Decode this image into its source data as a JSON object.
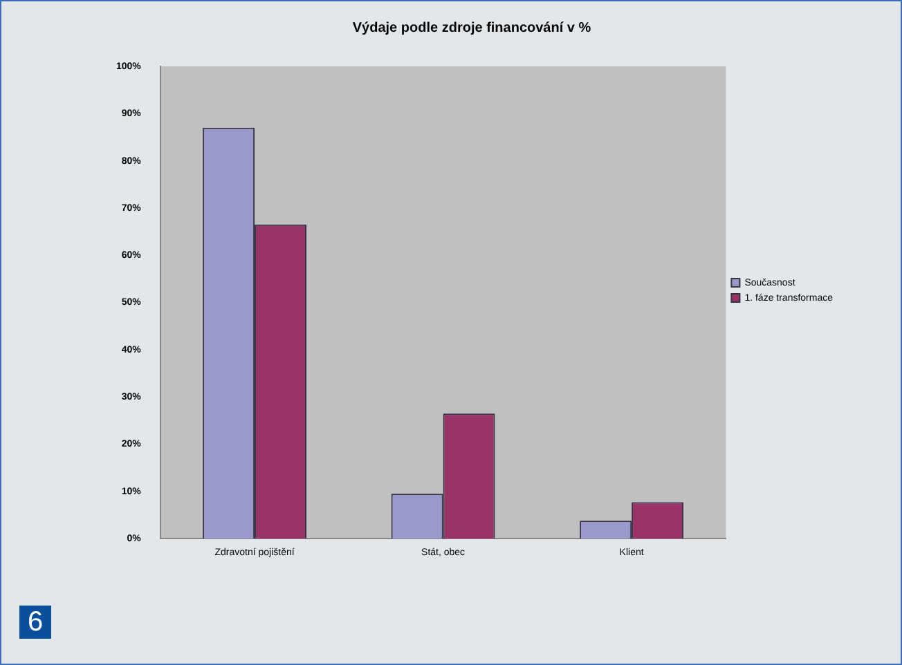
{
  "chart_data": {
    "type": "bar",
    "title": "Výdaje podle zdroje financování v %",
    "categories": [
      "Zdravotní pojištění",
      "Stát, obec",
      "Klient"
    ],
    "series": [
      {
        "name": "Současnost",
        "color": "#9999cc",
        "values": [
          87,
          9.5,
          3.8
        ]
      },
      {
        "name": "1. fáze transformace",
        "color": "#993366",
        "values": [
          66.5,
          26.5,
          7.7
        ]
      }
    ],
    "ylim": [
      0,
      100
    ],
    "yticks": [
      {
        "value": 0,
        "label": "0%"
      },
      {
        "value": 10,
        "label": "10%"
      },
      {
        "value": 20,
        "label": "20%"
      },
      {
        "value": 30,
        "label": "30%"
      },
      {
        "value": 40,
        "label": "40%"
      },
      {
        "value": 50,
        "label": "50%"
      },
      {
        "value": 60,
        "label": "60%"
      },
      {
        "value": 70,
        "label": "70%"
      },
      {
        "value": 80,
        "label": "80%"
      },
      {
        "value": 90,
        "label": "90%"
      },
      {
        "value": 100,
        "label": "100%"
      }
    ],
    "grid": false,
    "legend": "right",
    "annotations": [
      "6"
    ]
  }
}
